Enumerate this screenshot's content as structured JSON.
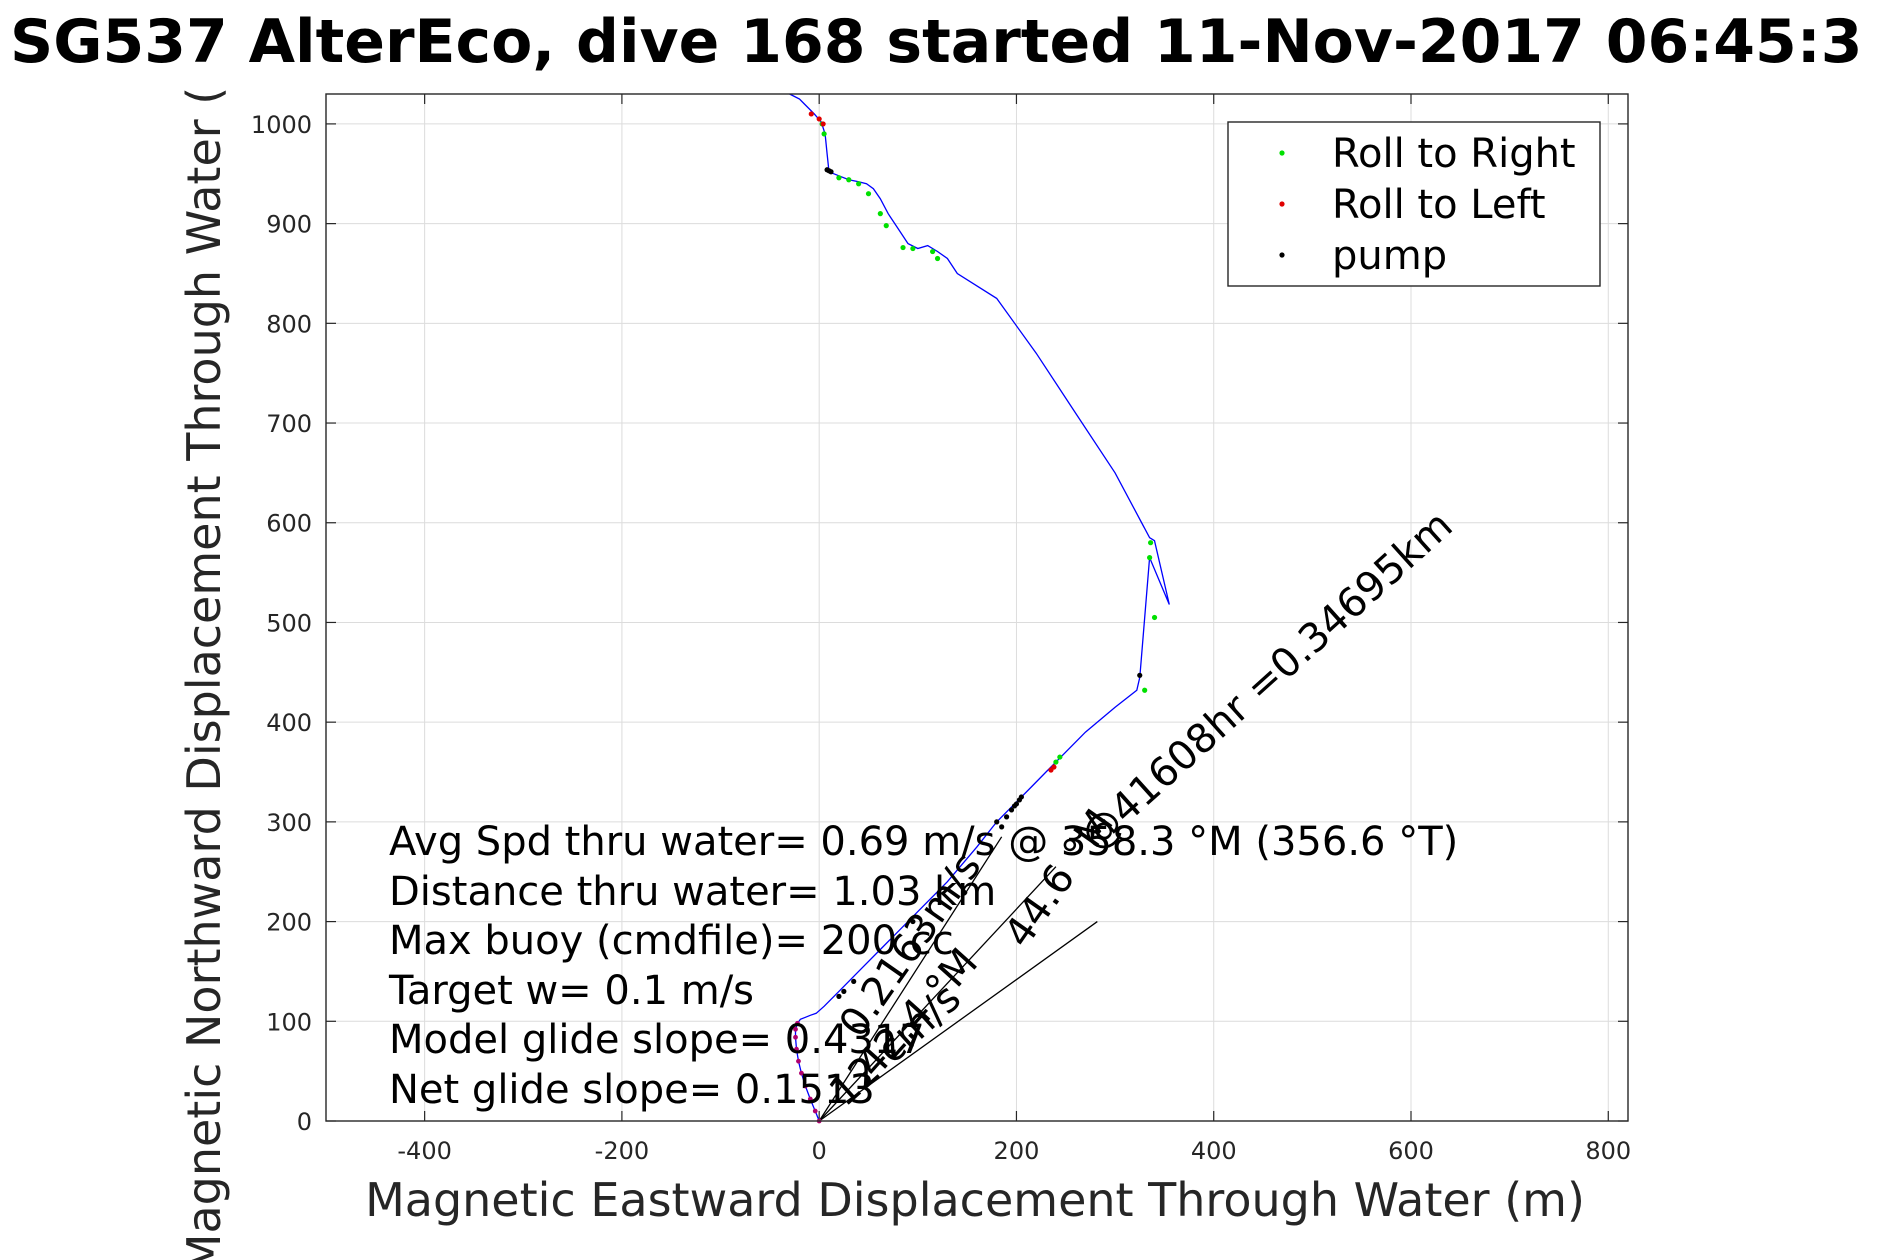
{
  "chart_data": {
    "type": "line",
    "title": "SG537 AlterEco, dive 168 started 11-Nov-2017 06:45:3",
    "xlabel": "Magnetic Eastward Displacement Through Water (m)",
    "ylabel": "Magnetic Northward Displacement Through Water (",
    "xlim": [
      -500,
      820
    ],
    "ylim": [
      0,
      1030
    ],
    "xticks": [
      -400,
      -200,
      0,
      200,
      400,
      600,
      800
    ],
    "yticks": [
      0,
      100,
      200,
      300,
      400,
      500,
      600,
      700,
      800,
      900,
      1000
    ],
    "grid": true,
    "legend_position": "top-right",
    "colors": {
      "track": "#0000ff",
      "roll_right": "#00e000",
      "roll_left": "#e00000",
      "pump": "#000000",
      "dense_marker": "#b0006e",
      "grid": "#dcdcdc"
    },
    "legend": [
      {
        "label": "Roll to Right",
        "color": "#00e000"
      },
      {
        "label": "Roll to Left",
        "color": "#e00000"
      },
      {
        "label": "pump",
        "color": "#000000"
      }
    ],
    "series": [
      {
        "name": "track",
        "x": [
          0,
          -4,
          -9,
          -14,
          -18,
          -21,
          -23,
          -24,
          -24,
          -22,
          -19,
          -14,
          -9,
          -3,
          5,
          20,
          40,
          65,
          95,
          130,
          160,
          180,
          200,
          215,
          230,
          245,
          270,
          300,
          322,
          325,
          335,
          355,
          340,
          335,
          300,
          260,
          220,
          180,
          140,
          130,
          120,
          110,
          100,
          90,
          80,
          70,
          62,
          55,
          48,
          40,
          30,
          20,
          10,
          8,
          6,
          2,
          -5,
          -15,
          -20,
          -30
        ],
        "y": [
          0,
          10,
          22,
          35,
          48,
          60,
          72,
          84,
          92,
          98,
          102,
          104,
          106,
          108,
          115,
          130,
          150,
          175,
          205,
          240,
          275,
          300,
          320,
          335,
          350,
          365,
          390,
          415,
          432,
          445,
          565,
          518,
          582,
          585,
          650,
          710,
          770,
          825,
          850,
          865,
          872,
          878,
          875,
          880,
          895,
          910,
          925,
          935,
          940,
          942,
          944,
          948,
          952,
          970,
          990,
          1002,
          1010,
          1020,
          1025,
          1030
        ]
      },
      {
        "name": "Roll to Right",
        "x": [
          240,
          244,
          330,
          335,
          336,
          340,
          120,
          115,
          95,
          85,
          68,
          62,
          50,
          40,
          30,
          20,
          5,
          3
        ],
        "y": [
          360,
          365,
          432,
          565,
          580,
          505,
          865,
          872,
          875,
          876,
          898,
          910,
          930,
          940,
          944,
          946,
          990,
          1000
        ]
      },
      {
        "name": "Roll to Left",
        "x": [
          235,
          238,
          -8,
          0,
          4
        ],
        "y": [
          352,
          355,
          1010,
          1005,
          1000
        ]
      },
      {
        "name": "pump",
        "x": [
          185,
          190,
          195,
          198,
          200,
          203,
          205,
          180,
          95,
          35,
          25,
          20,
          325,
          12,
          10,
          8
        ],
        "y": [
          295,
          305,
          312,
          316,
          318,
          322,
          325,
          300,
          200,
          140,
          130,
          125,
          447,
          952,
          953,
          954
        ]
      }
    ],
    "annotations": [
      "Avg Spd thru water=  0.69 m/s @ 358.3 °M (356.6 °T)",
      "Distance thru water=  1.03 km",
      "Max buoy (cmdfile)= 200 cc",
      "Target w= 0.1 m/s",
      "Model glide slope= 0.4317",
      "Net glide slope= 0.1513"
    ],
    "rotated_annotations": [
      "@41608hr =0.34695km",
      "0.2163m/s",
      "44.6 °M",
      "42.4 °M",
      "12 cm/s"
    ],
    "current_vector": {
      "x": [
        0,
        282
      ],
      "y": [
        0,
        200
      ]
    }
  }
}
